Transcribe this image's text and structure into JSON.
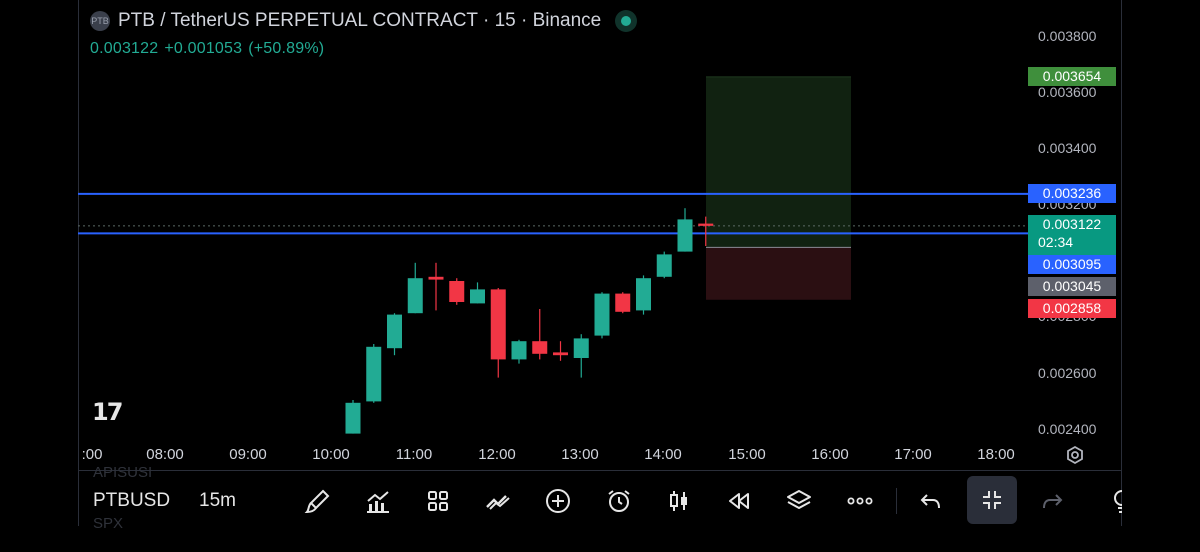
{
  "header": {
    "title": "PTB / TetherUS PERPETUAL CONTRACT · 15 · Binance",
    "symbol_logo_text": "PTB",
    "last_price": "0.003122",
    "change": "+0.001053",
    "change_pct": "(+50.89%)"
  },
  "price_axis": {
    "ticks": [
      "0.003800",
      "0.003600",
      "0.003400",
      "0.003200",
      "0.002800",
      "0.002600",
      "0.002400"
    ]
  },
  "badges": {
    "target": "0.003654",
    "upper_line": "0.003236",
    "current_price": "0.003122",
    "countdown": "02:34",
    "lower_line": "0.003095",
    "entry": "0.003045",
    "stop": "0.002858"
  },
  "time_axis": {
    "ticks": [
      ":00",
      "08:00",
      "09:00",
      "10:00",
      "11:00",
      "12:00",
      "13:00",
      "14:00",
      "15:00",
      "16:00",
      "17:00",
      "18:00"
    ]
  },
  "colors": {
    "up": "#22ab94",
    "down": "#f23645",
    "line": "#2962ff",
    "target_badge": "#3f8f3c",
    "entry_badge": "#5d606b",
    "profit_zone": "#112211",
    "loss_zone": "#2b0f12"
  },
  "logo_text": "17",
  "toolbar": {
    "symbol": "PTBUSD",
    "timeframe": "15m",
    "ghost_above": "APISUSI",
    "ghost_below": "SPX",
    "icons": [
      "brush-icon",
      "indicators-icon",
      "layouts-icon",
      "trend-line-icon",
      "add-icon",
      "alert-icon",
      "candles-icon",
      "replay-icon",
      "layers-icon",
      "more-icon",
      "undo-icon",
      "collapse-icon",
      "redo-icon",
      "lightbulb-icon"
    ]
  },
  "chart_data": {
    "type": "candlestick",
    "y_range": [
      0.00236,
      0.00385
    ],
    "x_ticks": [
      "08:00",
      "09:00",
      "10:00",
      "11:00",
      "12:00",
      "13:00",
      "14:00",
      "15:00",
      "16:00",
      "17:00",
      "18:00"
    ],
    "candles": [
      {
        "o": 0.00238,
        "h": 0.0025,
        "l": 0.00238,
        "c": 0.00249
      },
      {
        "o": 0.002495,
        "h": 0.0027,
        "l": 0.00249,
        "c": 0.00269
      },
      {
        "o": 0.002685,
        "h": 0.00281,
        "l": 0.00266,
        "c": 0.002805
      },
      {
        "o": 0.00281,
        "h": 0.00299,
        "l": 0.00281,
        "c": 0.002935
      },
      {
        "o": 0.00294,
        "h": 0.00299,
        "l": 0.00282,
        "c": 0.00293
      },
      {
        "o": 0.002925,
        "h": 0.002935,
        "l": 0.00284,
        "c": 0.00285
      },
      {
        "o": 0.002845,
        "h": 0.00292,
        "l": 0.002845,
        "c": 0.002895
      },
      {
        "o": 0.002895,
        "h": 0.0029,
        "l": 0.00258,
        "c": 0.002645
      },
      {
        "o": 0.002645,
        "h": 0.002715,
        "l": 0.00263,
        "c": 0.00271
      },
      {
        "o": 0.00271,
        "h": 0.002825,
        "l": 0.002645,
        "c": 0.002665
      },
      {
        "o": 0.00267,
        "h": 0.00271,
        "l": 0.00264,
        "c": 0.00266
      },
      {
        "o": 0.00265,
        "h": 0.002735,
        "l": 0.00258,
        "c": 0.00272
      },
      {
        "o": 0.00273,
        "h": 0.002885,
        "l": 0.00272,
        "c": 0.00288
      },
      {
        "o": 0.00288,
        "h": 0.002885,
        "l": 0.00281,
        "c": 0.002815
      },
      {
        "o": 0.00282,
        "h": 0.002945,
        "l": 0.002805,
        "c": 0.002935
      },
      {
        "o": 0.00294,
        "h": 0.00303,
        "l": 0.002935,
        "c": 0.00302
      },
      {
        "o": 0.00303,
        "h": 0.003185,
        "l": 0.00303,
        "c": 0.003145
      },
      {
        "o": 0.00313,
        "h": 0.003155,
        "l": 0.00305,
        "c": 0.003122
      }
    ],
    "horizontal_lines": [
      0.003236,
      0.003095
    ],
    "dotted_line": 0.003122,
    "position": {
      "target": 0.003654,
      "entry": 0.003045,
      "stop": 0.002858
    }
  }
}
